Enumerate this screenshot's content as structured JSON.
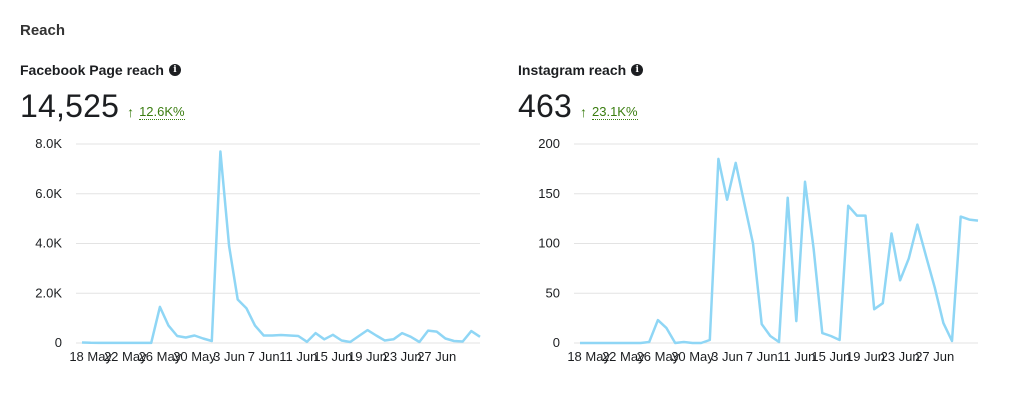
{
  "section_title": "Reach",
  "panels": [
    {
      "title": "Facebook Page reach",
      "value": "14,525",
      "change": "12.6K%",
      "info_icon": "info-icon",
      "trend_icon": "arrow-up-icon",
      "trend_color": "#3a7d10"
    },
    {
      "title": "Instagram reach",
      "value": "463",
      "change": "23.1K%",
      "info_icon": "info-icon",
      "trend_icon": "arrow-up-icon",
      "trend_color": "#3a7d10"
    }
  ],
  "chart_data": [
    {
      "type": "line",
      "title": "Facebook Page reach",
      "ylim": [
        0,
        8000
      ],
      "yticks": [
        0,
        2000,
        4000,
        6000,
        8000
      ],
      "ytick_labels": [
        "0",
        "2.0K",
        "4.0K",
        "6.0K",
        "8.0K"
      ],
      "x_tick_labels": [
        "18 May",
        "22 May",
        "26 May",
        "30 May",
        "3 Jun",
        "7 Jun",
        "11 Jun",
        "15 Jun",
        "19 Jun",
        "23 Jun",
        "27 Jun"
      ],
      "grid": true,
      "line_color": "#8fd6f5",
      "series": [
        {
          "values": [
            20,
            10,
            5,
            5,
            5,
            5,
            5,
            5,
            5,
            1450,
            700,
            280,
            220,
            300,
            180,
            80,
            7700,
            3900,
            1750,
            1400,
            700,
            300,
            300,
            320,
            300,
            280,
            50,
            400,
            150,
            330,
            100,
            40,
            280,
            520,
            300,
            100,
            150,
            400,
            250,
            40,
            500,
            460,
            180,
            80,
            60,
            480,
            250
          ]
        }
      ]
    },
    {
      "type": "line",
      "title": "Instagram reach",
      "ylim": [
        0,
        200
      ],
      "yticks": [
        0,
        50,
        100,
        150,
        200
      ],
      "ytick_labels": [
        "0",
        "50",
        "100",
        "150",
        "200"
      ],
      "x_tick_labels": [
        "18 May",
        "22 May",
        "26 May",
        "30 May",
        "3 Jun",
        "7 Jun",
        "11 Jun",
        "15 Jun",
        "19 Jun",
        "23 Jun",
        "27 Jun"
      ],
      "grid": true,
      "line_color": "#8fd6f5",
      "series": [
        {
          "values": [
            0,
            0,
            0,
            0,
            0,
            0,
            0,
            0,
            1,
            23,
            15,
            0,
            1,
            0,
            0,
            3,
            185,
            144,
            181,
            140,
            100,
            19,
            7,
            1,
            146,
            22,
            162,
            95,
            10,
            7,
            3,
            138,
            128,
            128,
            34,
            40,
            110,
            63,
            85,
            119,
            87,
            56,
            20,
            2,
            127,
            124,
            123
          ]
        }
      ]
    }
  ]
}
